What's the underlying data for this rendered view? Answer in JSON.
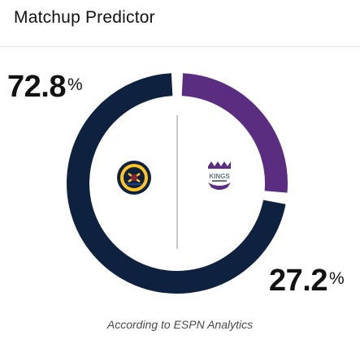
{
  "header": {
    "title": "Matchup Predictor"
  },
  "teams": [
    {
      "name": "Denver Nuggets",
      "percent_value": 72.8,
      "percent_label": "72.8",
      "color": "#0e2240",
      "logo_icon": "nuggets-logo-icon"
    },
    {
      "name": "Sacramento Kings",
      "percent_value": 27.2,
      "percent_label": "27.2",
      "color": "#5a2d81",
      "logo_icon": "kings-logo-icon",
      "logo_text": "KINGS"
    }
  ],
  "percent_symbol": "%",
  "footer": {
    "attribution": "According to ESPN Analytics"
  }
}
